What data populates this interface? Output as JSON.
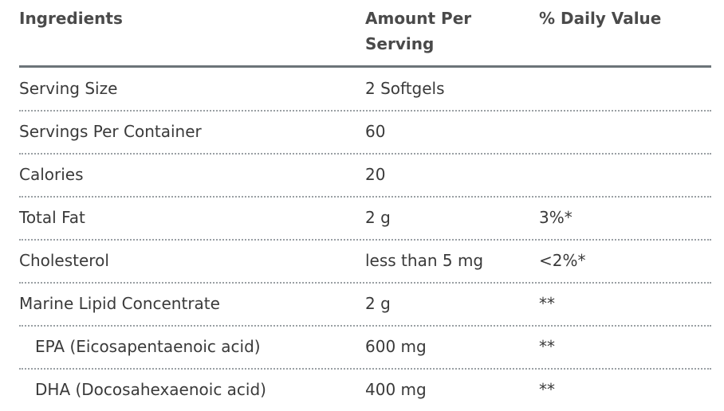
{
  "table": {
    "headers": [
      "Ingredients",
      "Amount Per Serving",
      "% Daily Value"
    ],
    "rows": [
      [
        "Serving Size",
        "2 Softgels"
      ],
      [
        "Servings Per Container",
        "60"
      ],
      [
        "Calories",
        "20"
      ],
      [
        "Total Fat",
        "2 g",
        "3%*"
      ],
      [
        "Cholesterol",
        "less than 5 mg",
        "<2%*"
      ],
      [
        "Marine Lipid Concentrate",
        "2 g",
        "**"
      ],
      [
        "EPA (Eicosapentaenoic acid)",
        "600 mg",
        "**"
      ],
      [
        "DHA (Docosahexaenoic acid)",
        "400 mg",
        "**"
      ]
    ],
    "indented_rows": [
      6,
      7
    ]
  }
}
